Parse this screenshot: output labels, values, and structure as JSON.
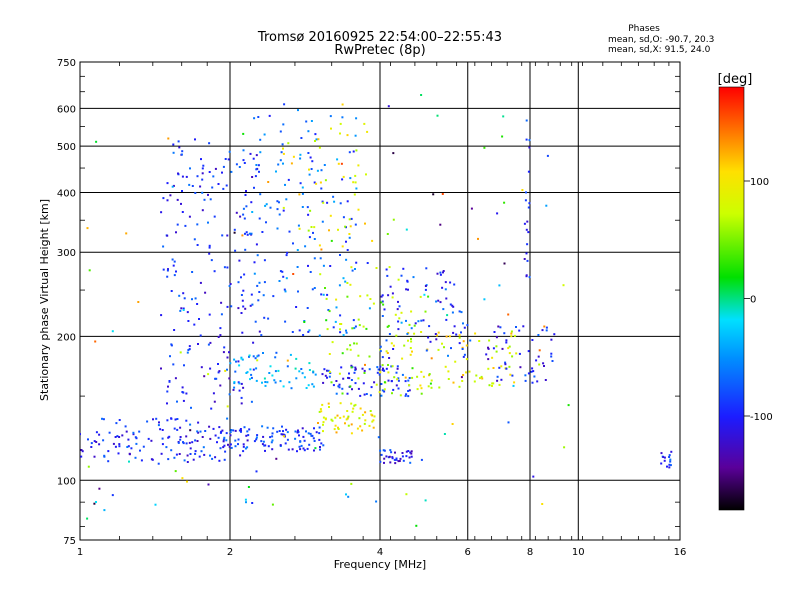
{
  "header": {
    "title_line1": "Tromsø 20160925 22:54:00–22:55:43",
    "title_line2": "RwPretec (8p)"
  },
  "phases_box": {
    "heading": "Phases",
    "line_o": "mean, sd,O:  -90.7, 20.3",
    "line_x": "mean, sd,X:  91.5, 24.0"
  },
  "colorbar": {
    "unit_label": "[deg]",
    "min": -180,
    "max": 180,
    "ticks": [
      {
        "value": 100,
        "label": "100"
      },
      {
        "value": 0,
        "label": "0"
      },
      {
        "value": -100,
        "label": "-100"
      }
    ]
  },
  "chart_data": {
    "type": "scatter",
    "title": "Tromsø 20160925 22:54:00–22:55:43",
    "subtitle": "RwPretec (8p)",
    "xlabel": "Frequency [MHz]",
    "ylabel": "Stationary phase Virtual Height [km]",
    "x_scale": "log",
    "y_scale": "log",
    "xlim": [
      1,
      16
    ],
    "ylim": [
      75,
      750
    ],
    "x_ticks": [
      {
        "value": 1,
        "label": "1"
      },
      {
        "value": 2,
        "label": "2"
      },
      {
        "value": 4,
        "label": "4"
      },
      {
        "value": 6,
        "label": "6"
      },
      {
        "value": 8,
        "label": "8"
      },
      {
        "value": 10,
        "label": "10"
      },
      {
        "value": 16,
        "label": "16"
      }
    ],
    "y_ticks": [
      {
        "value": 75,
        "label": "75"
      },
      {
        "value": 100,
        "label": "100"
      },
      {
        "value": 200,
        "label": "200"
      },
      {
        "value": 300,
        "label": "300"
      },
      {
        "value": 400,
        "label": "400"
      },
      {
        "value": 500,
        "label": "500"
      },
      {
        "value": 600,
        "label": "600"
      },
      {
        "value": 750,
        "label": "750"
      }
    ],
    "x_gridlines": [
      2,
      4,
      6,
      8,
      10
    ],
    "y_gridlines": [
      100,
      200,
      300,
      400,
      500,
      600
    ],
    "grid": true,
    "color_scale": "phase [deg], -180 (black) to 180 (red), rainbow",
    "point_groups": [
      {
        "name": "low E trace",
        "x_range": [
          1.0,
          2.1
        ],
        "y_range": [
          108,
          135
        ],
        "phase_deg": -95,
        "count": 130
      },
      {
        "name": "E band 2-3 MHz",
        "x_range": [
          1.9,
          3.1
        ],
        "y_range": [
          115,
          130
        ],
        "phase_deg": -90,
        "count": 110
      },
      {
        "name": "F layer column 1.5-2.2 MHz",
        "x_range": [
          1.45,
          2.3
        ],
        "y_range": [
          140,
          520
        ],
        "phase_deg": -95,
        "count": 220
      },
      {
        "name": "F layer column 2.2-3.5 MHz",
        "x_range": [
          2.2,
          3.6
        ],
        "y_range": [
          200,
          600
        ],
        "phase_deg": -70,
        "count": 150
      },
      {
        "name": "X mode high-h scatter",
        "x_range": [
          2.5,
          3.9
        ],
        "y_range": [
          300,
          560
        ],
        "phase_deg": 90,
        "count": 45
      },
      {
        "name": "O trace 3-4.5 MHz",
        "x_range": [
          3.0,
          4.6
        ],
        "y_range": [
          150,
          175
        ],
        "phase_deg": -95,
        "count": 80
      },
      {
        "name": "O trace 2-3 MHz",
        "x_range": [
          2.0,
          3.0
        ],
        "y_range": [
          155,
          185
        ],
        "phase_deg": -40,
        "count": 60
      },
      {
        "name": "X trace 3-4 MHz",
        "x_range": [
          3.0,
          3.9
        ],
        "y_range": [
          125,
          145
        ],
        "phase_deg": 95,
        "count": 55
      },
      {
        "name": "X trace 4-7.5 MHz",
        "x_range": [
          4.0,
          7.6
        ],
        "y_range": [
          155,
          205
        ],
        "phase_deg": 90,
        "count": 90
      },
      {
        "name": "O trace 4-6 MHz",
        "x_range": [
          4.0,
          6.0
        ],
        "y_range": [
          180,
          280
        ],
        "phase_deg": -90,
        "count": 80
      },
      {
        "name": "O trace 6.5-9 MHz",
        "x_range": [
          6.5,
          9.0
        ],
        "y_range": [
          160,
          210
        ],
        "phase_deg": -100,
        "count": 50
      },
      {
        "name": "spread 3-5 MHz",
        "x_range": [
          3.0,
          5.2
        ],
        "y_range": [
          150,
          280
        ],
        "phase_deg": 60,
        "count": 70
      },
      {
        "name": "cluster 4-4.7 MHz near 110 km",
        "x_range": [
          4.0,
          4.7
        ],
        "y_range": [
          108,
          116
        ],
        "phase_deg": -100,
        "count": 35
      },
      {
        "name": "8 MHz vertical",
        "x_range": [
          7.8,
          8.0
        ],
        "y_range": [
          250,
          600
        ],
        "phase_deg": -100,
        "count": 20
      },
      {
        "name": "15 MHz cluster",
        "x_range": [
          14.6,
          15.4
        ],
        "y_range": [
          106,
          115
        ],
        "phase_deg": -90,
        "count": 15
      },
      {
        "name": "sparse scatter",
        "x_range": [
          1.0,
          10.0
        ],
        "y_range": [
          80,
          650
        ],
        "phase_deg": 0,
        "count": 120
      }
    ]
  }
}
